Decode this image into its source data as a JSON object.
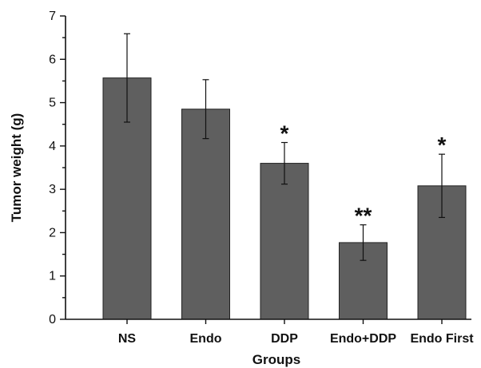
{
  "chart_data": {
    "type": "bar",
    "title": "",
    "xlabel": "Groups",
    "ylabel": "Tumor weight (g)",
    "ylim": [
      0,
      7
    ],
    "yticks": [
      "0",
      "1",
      "2",
      "3",
      "4",
      "5",
      "6",
      "7"
    ],
    "categories": [
      "NS",
      "Endo",
      "DDP",
      "Endo+DDP",
      "Endo First"
    ],
    "values": [
      5.57,
      4.85,
      3.6,
      1.77,
      3.08
    ],
    "error": [
      1.02,
      0.68,
      0.48,
      0.41,
      0.73
    ],
    "significance": [
      "",
      "",
      "*",
      "**",
      "*"
    ],
    "bar_color": "#5f5f5f",
    "grid": false,
    "legend": "none"
  }
}
